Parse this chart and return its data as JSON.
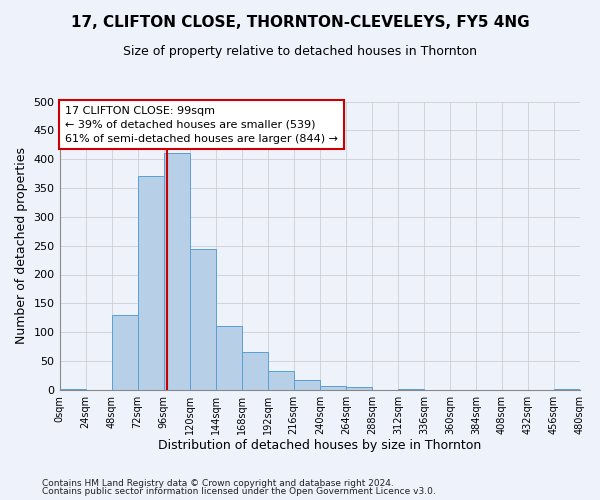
{
  "title": "17, CLIFTON CLOSE, THORNTON-CLEVELEYS, FY5 4NG",
  "subtitle": "Size of property relative to detached houses in Thornton",
  "xlabel": "Distribution of detached houses by size in Thornton",
  "ylabel": "Number of detached properties",
  "bin_edges": [
    0,
    24,
    48,
    72,
    96,
    120,
    144,
    168,
    192,
    216,
    240,
    264,
    288,
    312,
    336,
    360,
    384,
    408,
    432,
    456,
    480
  ],
  "bar_heights": [
    2,
    0,
    130,
    370,
    410,
    245,
    110,
    65,
    32,
    17,
    7,
    5,
    0,
    2,
    0,
    0,
    0,
    0,
    0,
    2
  ],
  "bar_color": "#b8cfe8",
  "bar_edge_color": "#5a9fd4",
  "vline_color": "#cc0000",
  "vline_x": 99,
  "annotation_line1": "17 CLIFTON CLOSE: 99sqm",
  "annotation_line2": "← 39% of detached houses are smaller (539)",
  "annotation_line3": "61% of semi-detached houses are larger (844) →",
  "annotation_box_color": "#ffffff",
  "annotation_box_edge": "#cc0000",
  "ylim": [
    0,
    500
  ],
  "yticks": [
    0,
    50,
    100,
    150,
    200,
    250,
    300,
    350,
    400,
    450,
    500
  ],
  "footer1": "Contains HM Land Registry data © Crown copyright and database right 2024.",
  "footer2": "Contains public sector information licensed under the Open Government Licence v3.0.",
  "bg_color": "#eef2fb",
  "grid_color": "#c8c8c8",
  "title_fontsize": 11,
  "subtitle_fontsize": 9,
  "annotation_fontsize": 8,
  "xlabel_fontsize": 9,
  "ylabel_fontsize": 9
}
